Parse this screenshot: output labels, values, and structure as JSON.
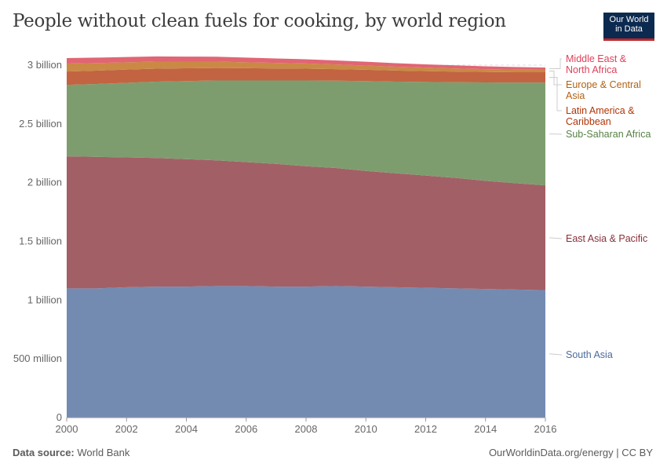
{
  "title": "People without clean fuels for cooking, by world region",
  "logo": {
    "line1": "Our World",
    "line2": "in Data"
  },
  "footer": {
    "source_label": "Data source:",
    "source": "World Bank",
    "credit": "OurWorldinData.org/energy | CC BY"
  },
  "chart_data": {
    "type": "area",
    "stacked": true,
    "title": "People without clean fuels for cooking, by world region",
    "xlabel": "",
    "ylabel": "",
    "x": [
      2000,
      2001,
      2002,
      2003,
      2004,
      2005,
      2006,
      2007,
      2008,
      2009,
      2010,
      2011,
      2012,
      2013,
      2014,
      2015,
      2016
    ],
    "xlim": [
      2000,
      2016
    ],
    "ylim": [
      0,
      3000000000
    ],
    "grid": "horizontal dashed",
    "legend": "right, inline labels",
    "x_ticks": [
      "2000",
      "2002",
      "2004",
      "2006",
      "2008",
      "2010",
      "2012",
      "2014",
      "2016"
    ],
    "y_ticks": [
      {
        "value": 0,
        "label": "0"
      },
      {
        "value": 500000000,
        "label": "500 million"
      },
      {
        "value": 1000000000,
        "label": "1 billion"
      },
      {
        "value": 1500000000,
        "label": "1.5 billion"
      },
      {
        "value": 2000000000,
        "label": "2 billion"
      },
      {
        "value": 2500000000,
        "label": "2.5 billion"
      },
      {
        "value": 3000000000,
        "label": "3 billion"
      }
    ],
    "series": [
      {
        "name": "South Asia",
        "color": "#6f87ae",
        "label_color": "#4c6a9c",
        "values_billion": [
          1.1,
          1.1,
          1.11,
          1.115,
          1.115,
          1.12,
          1.12,
          1.115,
          1.115,
          1.12,
          1.115,
          1.11,
          1.105,
          1.1,
          1.095,
          1.09,
          1.085
        ]
      },
      {
        "name": "East Asia & Pacific",
        "color": "#a05a61",
        "label_color": "#883039",
        "values_billion": [
          1.124,
          1.12,
          1.105,
          1.095,
          1.085,
          1.07,
          1.055,
          1.045,
          1.025,
          1.005,
          0.985,
          0.97,
          0.955,
          0.94,
          0.92,
          0.905,
          0.892
        ]
      },
      {
        "name": "Sub-Saharan Africa",
        "color": "#7a9a6a",
        "label_color": "#578145",
        "values_billion": [
          0.608,
          0.62,
          0.635,
          0.65,
          0.665,
          0.68,
          0.695,
          0.71,
          0.73,
          0.743,
          0.765,
          0.78,
          0.797,
          0.815,
          0.838,
          0.857,
          0.875
        ]
      },
      {
        "name": "Latin America & Caribbean",
        "color": "#c05f3b",
        "label_color": "#b13507",
        "values_billion": [
          0.114,
          0.113,
          0.112,
          0.11,
          0.108,
          0.106,
          0.104,
          0.102,
          0.1,
          0.098,
          0.096,
          0.094,
          0.092,
          0.09,
          0.089,
          0.088,
          0.088
        ]
      },
      {
        "name": "Europe & Central Asia",
        "color": "#c8853f",
        "label_color": "#b16214",
        "values_billion": [
          0.067,
          0.065,
          0.062,
          0.06,
          0.057,
          0.054,
          0.05,
          0.047,
          0.044,
          0.04,
          0.036,
          0.033,
          0.03,
          0.027,
          0.024,
          0.022,
          0.02
        ]
      },
      {
        "name": "Middle East & North Africa",
        "color": "#e0606e",
        "label_color": "#e0405a",
        "values_billion": [
          0.047,
          0.046,
          0.045,
          0.044,
          0.043,
          0.042,
          0.04,
          0.038,
          0.036,
          0.034,
          0.032,
          0.03,
          0.028,
          0.026,
          0.024,
          0.022,
          0.02
        ]
      }
    ]
  }
}
